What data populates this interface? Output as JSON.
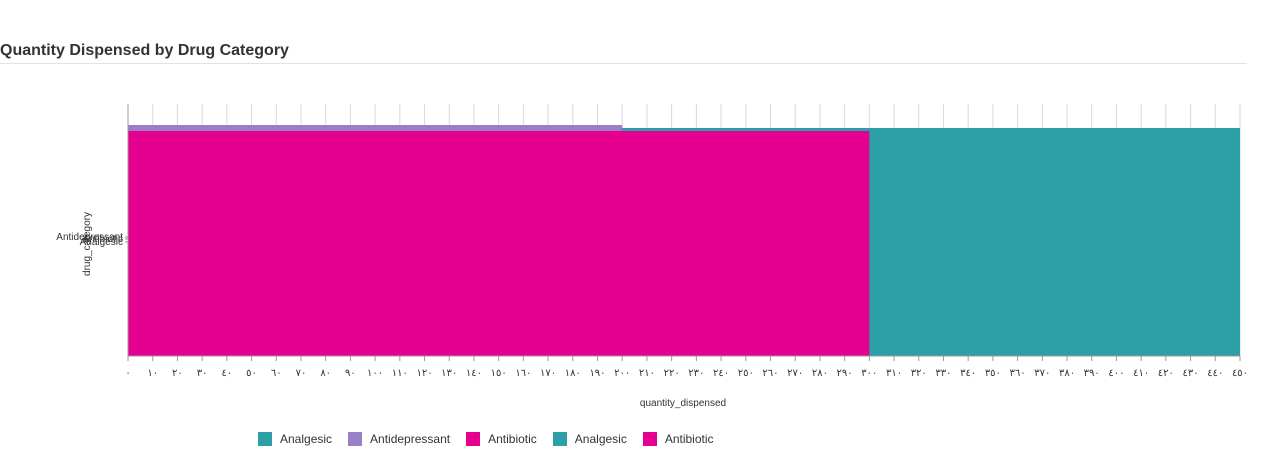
{
  "panel": {
    "title": "Quantity Dispensed by Drug Category"
  },
  "chart_data": {
    "type": "bar",
    "orientation": "horizontal",
    "stacked": true,
    "xlabel": "quantity_dispensed",
    "ylabel": "drug_category",
    "xlim": [
      0,
      450
    ],
    "x_ticks": [
      0,
      10,
      20,
      30,
      40,
      50,
      60,
      70,
      80,
      90,
      100,
      110,
      120,
      130,
      140,
      150,
      160,
      170,
      180,
      190,
      200,
      210,
      220,
      230,
      240,
      250,
      260,
      270,
      280,
      290,
      300,
      310,
      320,
      330,
      340,
      350,
      360,
      370,
      380,
      390,
      400,
      410,
      420,
      430,
      440,
      450
    ],
    "x_tick_labels": [
      "٠",
      "١٠",
      "٢٠",
      "٣٠",
      "٤٠",
      "٥٠",
      "٦٠",
      "٧٠",
      "٨٠",
      "٩٠",
      "١٠٠",
      "١١٠",
      "١٢٠",
      "١٣٠",
      "١٤٠",
      "١٥٠",
      "١٦٠",
      "١٧٠",
      "١٨٠",
      "١٩٠",
      "٢٠٠",
      "٢١٠",
      "٢٢٠",
      "٢٣٠",
      "٢٤٠",
      "٢٥٠",
      "٢٦٠",
      "٢٧٠",
      "٢٨٠",
      "٢٩٠",
      "٣٠٠",
      "٣١٠",
      "٣٢٠",
      "٣٣٠",
      "٣٤٠",
      "٣٥٠",
      "٣٦٠",
      "٣٧٠",
      "٣٨٠",
      "٣٩٠",
      "٤٠٠",
      "٤١٠",
      "٤٢٠",
      "٤٣٠",
      "٤٤٠",
      "٤٥٠"
    ],
    "y_tick_labels": [
      "Antidepressant",
      "Antibiotic",
      "Analgesic"
    ],
    "grid": true,
    "legend_position": "bottom-left",
    "series": [
      {
        "name": "Analgesic",
        "category": "Analgesic",
        "start": 0,
        "value": 450,
        "color": "#2ca0a7"
      },
      {
        "name": "Antidepressant",
        "category": "Antidepressant",
        "start": 0,
        "value": 200,
        "color": "#9a7fc7"
      },
      {
        "name": "Antibiotic",
        "category": "Antibiotic",
        "start": 0,
        "value": 300,
        "color": "#e5008f"
      }
    ],
    "legend": [
      {
        "name": "Analgesic",
        "color": "#2ca0a7"
      },
      {
        "name": "Antidepressant",
        "color": "#9a7fc7"
      },
      {
        "name": "Antibiotic",
        "color": "#e5008f"
      },
      {
        "name": "Analgesic",
        "color": "#2ca0a7"
      },
      {
        "name": "Antibiotic",
        "color": "#e5008f"
      }
    ]
  }
}
